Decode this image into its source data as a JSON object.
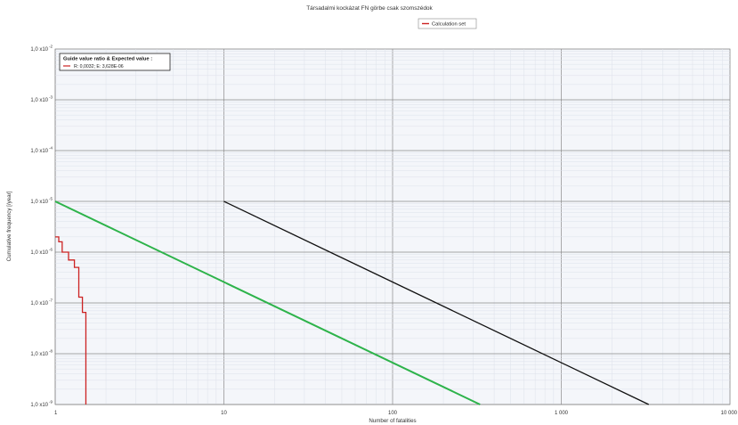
{
  "chart_data": {
    "type": "line",
    "title": "Társadalmi kockázat FN görbe csak szomszédok",
    "xlabel": "Number of fatalities",
    "ylabel": "Cumulative frequency [/year]",
    "x_scale": "log",
    "y_scale": "log",
    "xlim": [
      1,
      10000
    ],
    "ylim": [
      1e-09,
      0.01
    ],
    "grid": true,
    "legend_position": "top-center",
    "legend": [
      "Calculation set"
    ],
    "x_tick_labels": [
      "1",
      "10",
      "100",
      "1 000",
      "10 000"
    ],
    "y_ticks": [
      {
        "mantissa": "1,0 x10",
        "exp": "-9"
      },
      {
        "mantissa": "1,0 x10",
        "exp": "-8"
      },
      {
        "mantissa": "1,0 x10",
        "exp": "-7"
      },
      {
        "mantissa": "1,0 x10",
        "exp": "-6"
      },
      {
        "mantissa": "1,0 x10",
        "exp": "-5"
      },
      {
        "mantissa": "1,0 x10",
        "exp": "-4"
      },
      {
        "mantissa": "1,0 x10",
        "exp": "-3"
      },
      {
        "mantissa": "1,0 x10",
        "exp": "-2"
      }
    ],
    "annotation": {
      "heading": "Guide value ratio & Expected value :",
      "text": "R: 0,0032; E: 3,628E-06"
    },
    "series": [
      {
        "name": "Calculation set",
        "color": "#cc2222",
        "x": [
          1,
          1.05,
          1.05,
          1.1,
          1.1,
          1.2,
          1.2,
          1.3,
          1.3,
          1.38,
          1.38,
          1.45,
          1.45,
          1.52,
          1.52
        ],
        "y": [
          2e-06,
          2e-06,
          1.6e-06,
          1.6e-06,
          1e-06,
          1e-06,
          7e-07,
          7e-07,
          5e-07,
          5e-07,
          1.3e-07,
          1.3e-07,
          6.5e-08,
          6.5e-08,
          1e-09
        ]
      },
      {
        "color": "#2db34a",
        "x": [
          1,
          330
        ],
        "y": [
          1e-05,
          1e-09
        ]
      },
      {
        "color": "#111111",
        "x": [
          10,
          3300
        ],
        "y": [
          1e-05,
          1e-09
        ]
      }
    ]
  }
}
